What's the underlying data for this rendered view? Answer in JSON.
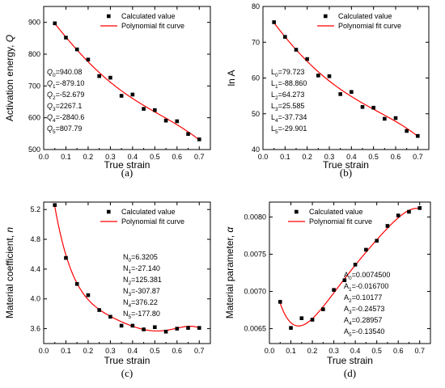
{
  "colors": {
    "fit": "#ff0000",
    "points": "#000000"
  },
  "chart_data": [
    {
      "type": "scatter",
      "panel": "(a)",
      "xlabel": "True strain",
      "ylabel": "Activation energy, ",
      "ylabel_symbol": "Q",
      "xlim": [
        0,
        0.75
      ],
      "ylim": [
        500,
        950
      ],
      "xticks": [
        "0.0",
        "0.1",
        "0.2",
        "0.3",
        "0.4",
        "0.5",
        "0.6",
        "0.7"
      ],
      "yticks": [
        "500",
        "600",
        "700",
        "800",
        "900"
      ],
      "legend": {
        "points": "Calculated value",
        "fit": "Polynomial fit curve",
        "placement": "top-right"
      },
      "x": [
        0.05,
        0.1,
        0.15,
        0.2,
        0.25,
        0.3,
        0.35,
        0.4,
        0.45,
        0.5,
        0.55,
        0.6,
        0.65,
        0.7
      ],
      "values": [
        897,
        852,
        815,
        783,
        731,
        726,
        669,
        673,
        628,
        624,
        591,
        589,
        549,
        532
      ],
      "fit_coefficients": [
        940.08,
        -879.1,
        -52.679,
        2267.1,
        -2840.6,
        807.79
      ],
      "annotations": [
        {
          "sym": "Q",
          "sub": "0",
          "val": "=940.08"
        },
        {
          "sym": "Q",
          "sub": "1",
          "val": "=-879.10"
        },
        {
          "sym": "Q",
          "sub": "2",
          "val": "=-52.679"
        },
        {
          "sym": "Q",
          "sub": "3",
          "val": "=2267.1"
        },
        {
          "sym": "Q",
          "sub": "4",
          "val": "=-2840.6"
        },
        {
          "sym": "Q",
          "sub": "5",
          "val": "=807.79"
        }
      ],
      "annotation_italic": true
    },
    {
      "type": "scatter",
      "panel": "(b)",
      "xlabel": "True strain",
      "ylabel": "ln A",
      "ylabel_symbol": "",
      "xlim": [
        0,
        0.75
      ],
      "ylim": [
        40,
        80
      ],
      "xticks": [
        "0.0",
        "0.1",
        "0.2",
        "0.3",
        "0.4",
        "0.5",
        "0.6",
        "0.7"
      ],
      "yticks": [
        "40",
        "50",
        "60",
        "70",
        "80"
      ],
      "legend": {
        "points": "Calculated value",
        "fit": "Polynomial fit curve",
        "placement": "top-right"
      },
      "x": [
        0.05,
        0.1,
        0.15,
        0.2,
        0.25,
        0.3,
        0.35,
        0.4,
        0.45,
        0.5,
        0.55,
        0.6,
        0.65,
        0.7
      ],
      "values": [
        75.6,
        71.5,
        67.9,
        65.3,
        60.7,
        60.5,
        55.5,
        56.1,
        51.9,
        51.7,
        48.6,
        48.8,
        45.2,
        43.8
      ],
      "fit_coefficients": [
        79.723,
        -88.86,
        64.273,
        25.585,
        -37.734,
        -29.901
      ],
      "annotations": [
        {
          "sym": "L",
          "sub": "0",
          "val": "=79.723"
        },
        {
          "sym": "L",
          "sub": "1",
          "val": "=-88.860"
        },
        {
          "sym": "L",
          "sub": "2",
          "val": "=64.273"
        },
        {
          "sym": "L",
          "sub": "3",
          "val": "=25.585"
        },
        {
          "sym": "L",
          "sub": "4",
          "val": "=-37.734"
        },
        {
          "sym": "L",
          "sub": "5",
          "val": "=-29.901"
        }
      ],
      "annotation_italic": false
    },
    {
      "type": "scatter",
      "panel": "(c)",
      "xlabel": "True strain",
      "ylabel": "Material coefficient, ",
      "ylabel_symbol": "n",
      "xlim": [
        0,
        0.75
      ],
      "ylim": [
        3.4,
        5.3
      ],
      "xticks": [
        "0.0",
        "0.1",
        "0.2",
        "0.3",
        "0.4",
        "0.5",
        "0.6",
        "0.7"
      ],
      "yticks": [
        "3.6",
        "4.0",
        "4.4",
        "4.8",
        "5.2"
      ],
      "ytick_values": [
        3.6,
        4.0,
        4.4,
        4.8,
        5.2
      ],
      "legend": {
        "points": "Calculated value",
        "fit": "Polynomial fit curve",
        "placement": "top-right"
      },
      "x": [
        0.05,
        0.1,
        0.15,
        0.2,
        0.25,
        0.3,
        0.35,
        0.4,
        0.45,
        0.5,
        0.55,
        0.6,
        0.65,
        0.7
      ],
      "values": [
        5.26,
        4.55,
        4.2,
        4.05,
        3.85,
        3.76,
        3.64,
        3.64,
        3.59,
        3.62,
        3.56,
        3.6,
        3.61,
        3.61
      ],
      "fit_coefficients": [
        6.3205,
        -27.14,
        125.381,
        -307.87,
        376.22,
        -177.8
      ],
      "annotations": [
        {
          "sym": "N",
          "sub": "0",
          "val": "=6.3205"
        },
        {
          "sym": "N",
          "sub": "1",
          "val": "=-27.140"
        },
        {
          "sym": "N",
          "sub": "2",
          "val": "=125.381"
        },
        {
          "sym": "N",
          "sub": "3",
          "val": "=-307.87"
        },
        {
          "sym": "N",
          "sub": "4",
          "val": "=376.22"
        },
        {
          "sym": "N",
          "sub": "5",
          "val": "=-177.80"
        }
      ],
      "annotation_italic": false
    },
    {
      "type": "scatter",
      "panel": "(d)",
      "xlabel": "True strain",
      "ylabel": "Material parameter, ",
      "ylabel_symbol": "α",
      "xlim": [
        0,
        0.75
      ],
      "ylim": [
        0.0063,
        0.0082
      ],
      "xticks": [
        "0.0",
        "0.1",
        "0.2",
        "0.3",
        "0.4",
        "0.5",
        "0.6",
        "0.7"
      ],
      "yticks": [
        "0.0065",
        "0.0070",
        "0.0075",
        "0.0080"
      ],
      "ytick_values": [
        0.0065,
        0.007,
        0.0075,
        0.008
      ],
      "legend": {
        "points": "Calculated value",
        "fit": "Polynomial fit curve",
        "placement": "top-left"
      },
      "x": [
        0.05,
        0.1,
        0.15,
        0.2,
        0.25,
        0.3,
        0.35,
        0.4,
        0.45,
        0.5,
        0.55,
        0.6,
        0.65,
        0.7
      ],
      "values": [
        0.00686,
        0.00651,
        0.00664,
        0.00662,
        0.00676,
        0.00702,
        0.00715,
        0.00736,
        0.00756,
        0.00768,
        0.00788,
        0.00802,
        0.00807,
        0.00812
      ],
      "fit_coefficients": [
        0.00745,
        -0.0167,
        0.10177,
        -0.24573,
        0.28957,
        -0.1354
      ],
      "annotations": [
        {
          "sym": "A",
          "sub": "0",
          "val": "=0.0074500"
        },
        {
          "sym": "A",
          "sub": "1",
          "val": "=-0.016700"
        },
        {
          "sym": "A",
          "sub": "2",
          "val": "=0.10177"
        },
        {
          "sym": "A",
          "sub": "3",
          "val": "=-0.24573"
        },
        {
          "sym": "A",
          "sub": "4",
          "val": "=0.28957"
        },
        {
          "sym": "A",
          "sub": "5",
          "val": "=-0.13540"
        }
      ],
      "annotation_italic": false
    }
  ]
}
